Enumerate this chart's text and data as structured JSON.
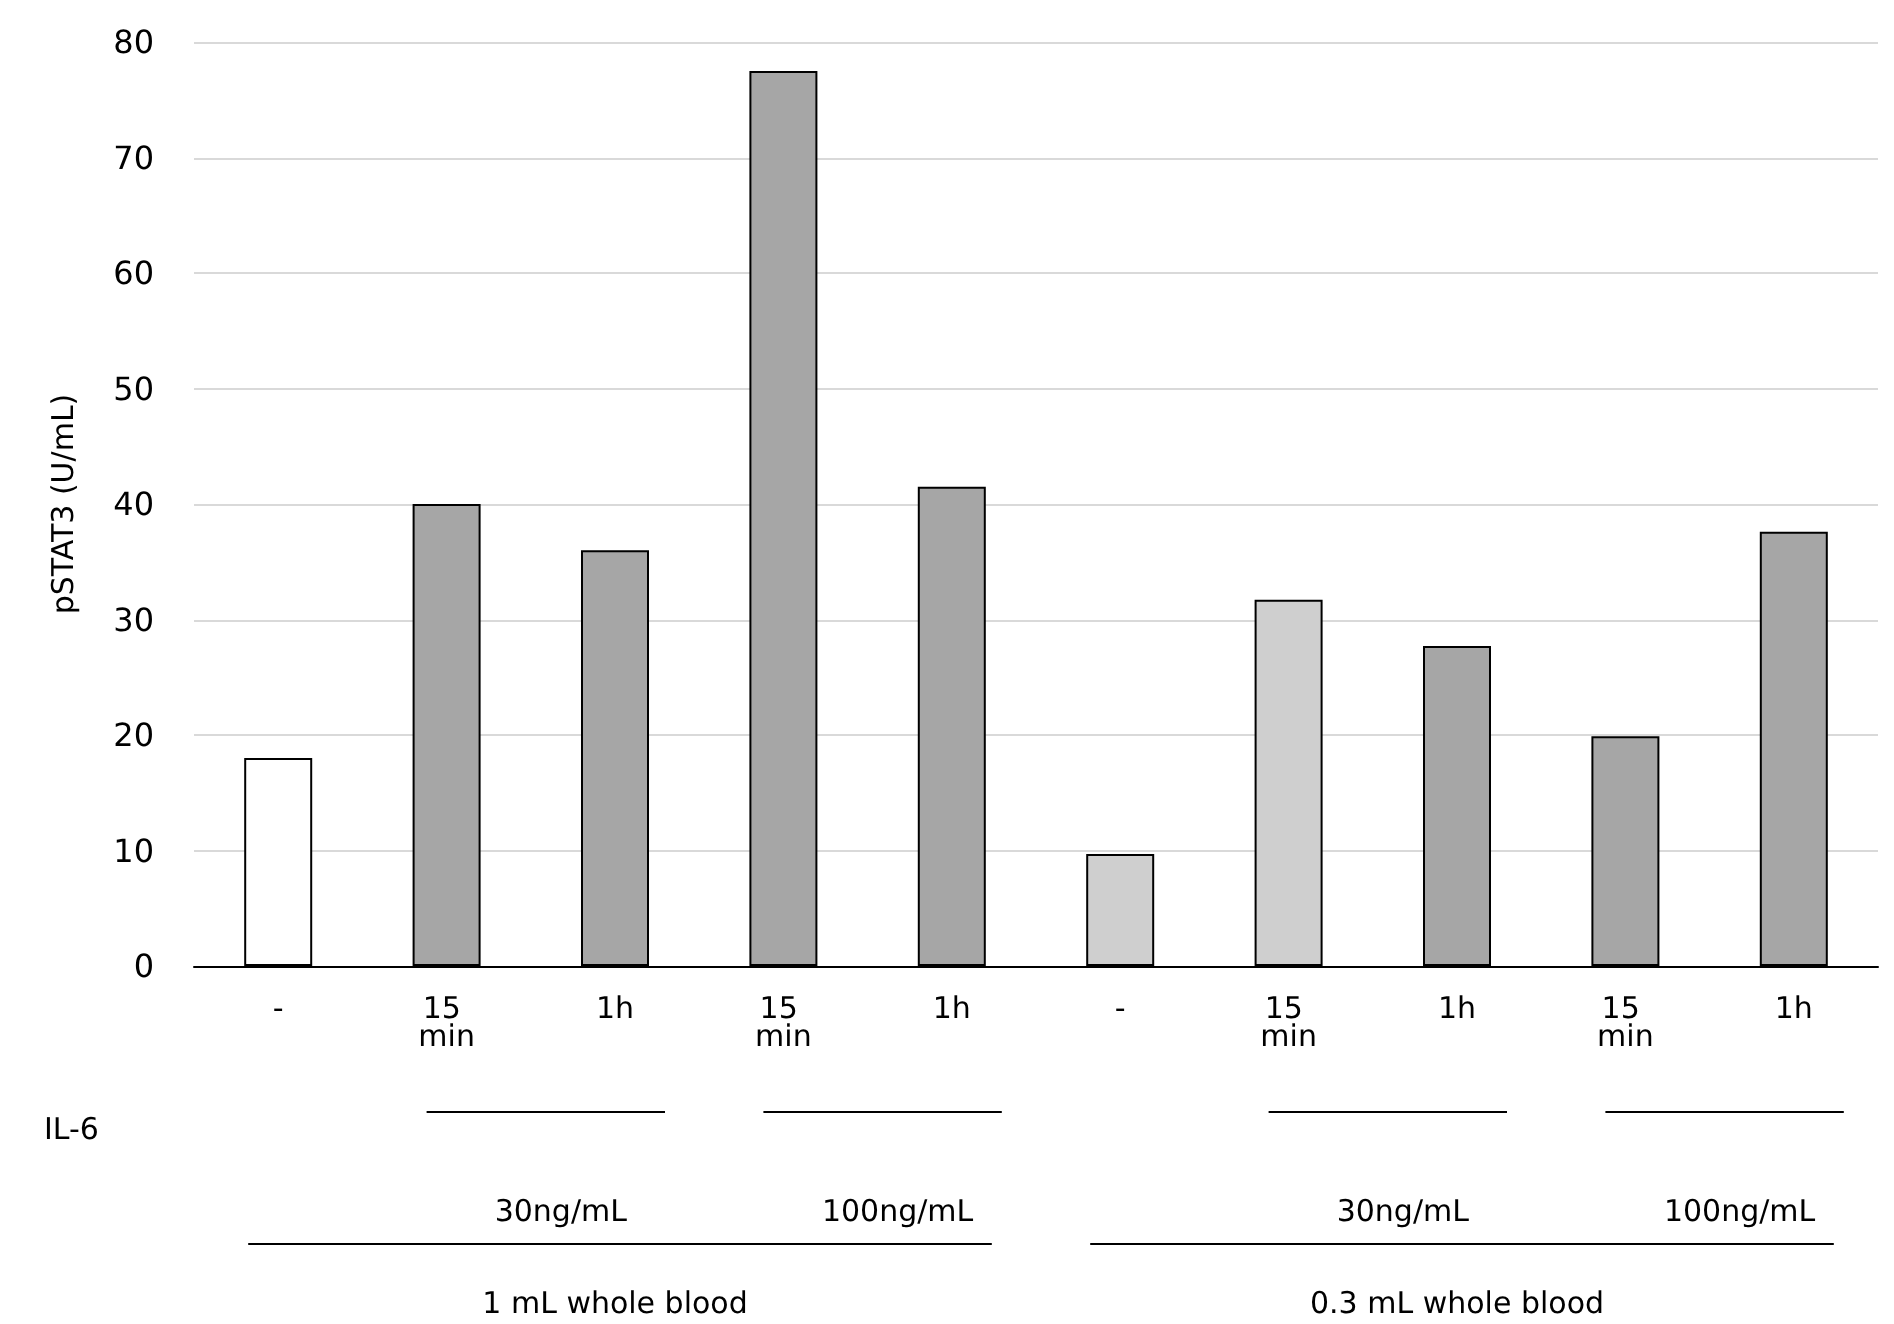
{
  "chart_data": {
    "type": "bar",
    "ylabel": "pSTAT3 (U/mL)",
    "categories": [
      "-",
      "15 min",
      "1h",
      "15 min",
      "1h",
      "-",
      "15 min",
      "1h",
      "15 min",
      "1h"
    ],
    "values": [
      18,
      40,
      36,
      77.5,
      41.5,
      9.7,
      31.7,
      27.7,
      19.9,
      37.6
    ],
    "colors": [
      "#ffffff",
      "#a6a6a6",
      "#a6a6a6",
      "#a6a6a6",
      "#a6a6a6",
      "#cfcfcf",
      "#cfcfcf",
      "#a6a6a6",
      "#a6a6a6",
      "#a6a6a6"
    ],
    "ylim": [
      0,
      80
    ],
    "yticks": [
      0,
      10,
      20,
      30,
      40,
      50,
      60,
      70,
      80
    ],
    "grid": "y",
    "annotations": [
      "IL-6",
      "30ng/mL",
      "100ng/mL",
      "30ng/mL",
      "100ng/mL",
      "1 mL whole blood",
      "0.3 mL whole blood"
    ]
  }
}
